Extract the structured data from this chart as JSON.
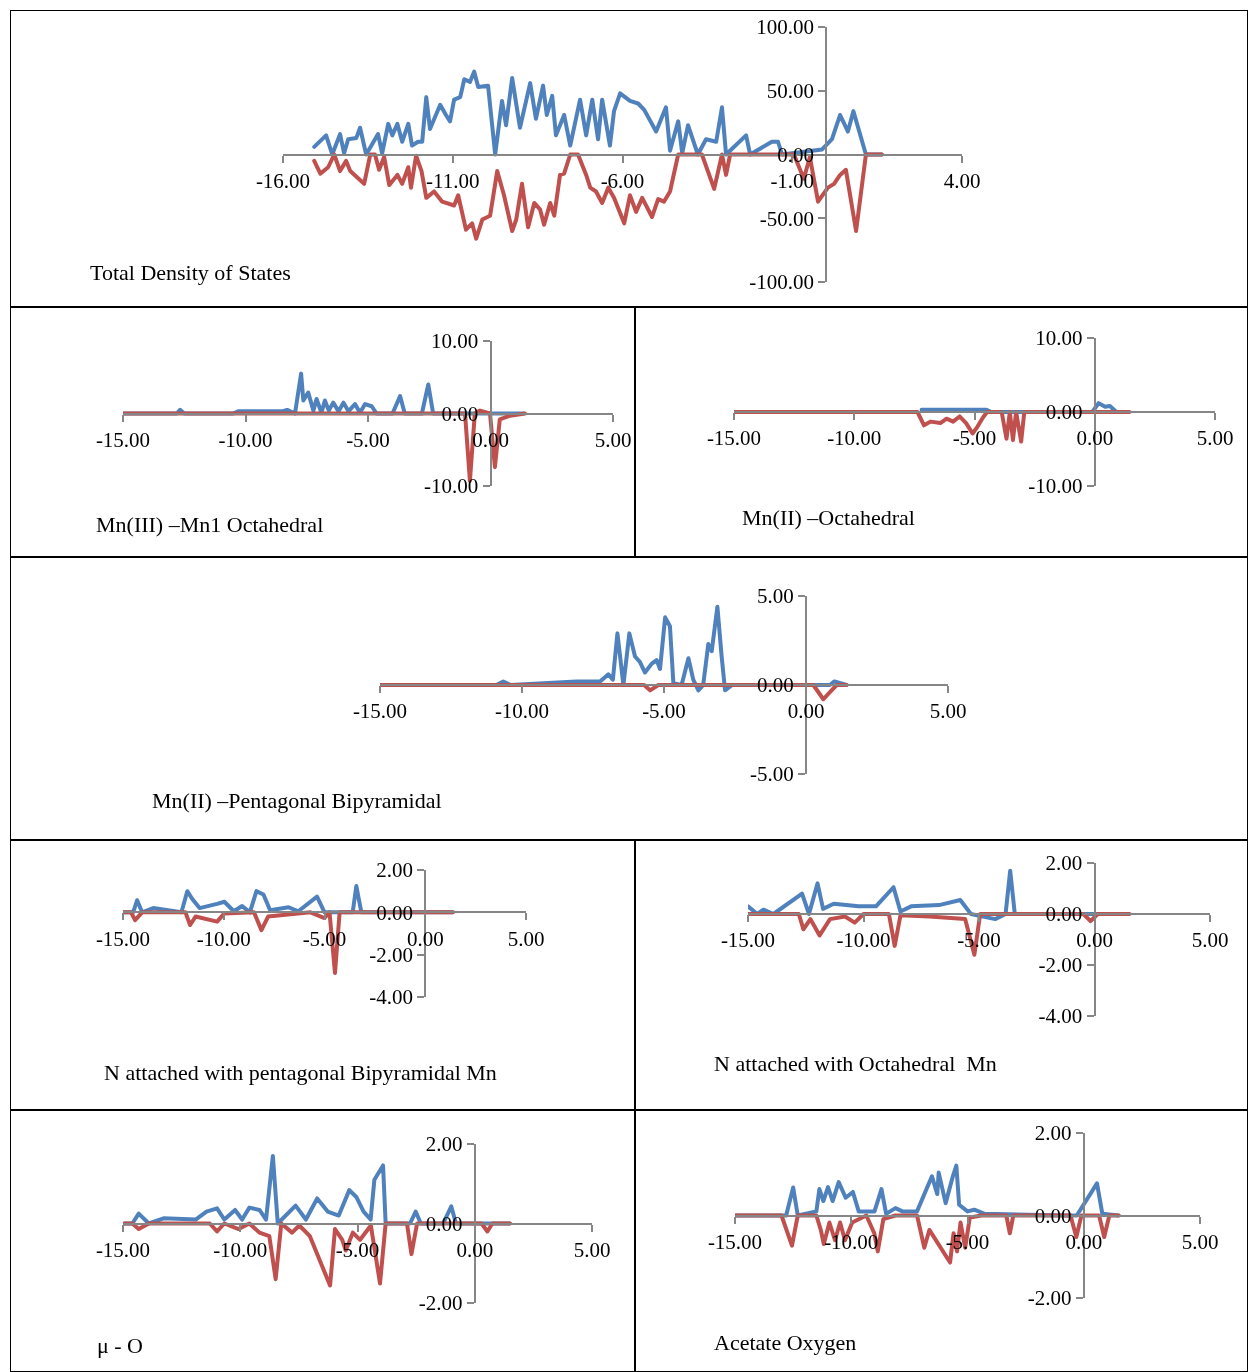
{
  "chart_data": [
    {
      "type": "line",
      "title": "Total Density of States",
      "xlim": [
        -16,
        4
      ],
      "xticks": [
        {
          "value": -16,
          "label": "-16.00"
        },
        {
          "value": -11,
          "label": "-11.00"
        },
        {
          "value": -6,
          "label": "-6.00"
        },
        {
          "value": -1,
          "label": "-1.00"
        },
        {
          "value": 4,
          "label": "4.00"
        }
      ],
      "ylim": [
        -100,
        100
      ],
      "yticks": [
        {
          "value": -100,
          "label": "-100.00"
        },
        {
          "value": -50,
          "label": "-50.00"
        },
        {
          "value": 0,
          "label": "0.00"
        },
        {
          "value": 50,
          "label": "50.00"
        },
        {
          "value": 100,
          "label": "100.00"
        }
      ],
      "series": [
        {
          "color": "#4f81bd",
          "x": [
            -15.08,
            -14.73,
            -14.55,
            -14.32,
            -14.2,
            -14.08,
            -13.84,
            -13.73,
            -13.55,
            -13.2,
            -13.08,
            -12.9,
            -12.78,
            -12.63,
            -12.49,
            -12.31,
            -12.2,
            -12.02,
            -11.9,
            -11.78,
            -11.67,
            -11.37,
            -11.2,
            -11.08,
            -10.96,
            -10.78,
            -10.66,
            -10.49,
            -10.37,
            -10.25,
            -9.96,
            -9.75,
            -9.55,
            -9.43,
            -9.25,
            -9.02,
            -8.72,
            -8.55,
            -8.34,
            -8.23,
            -8.07,
            -7.96,
            -7.72,
            -7.54,
            -7.25,
            -7.07,
            -6.89,
            -6.72,
            -6.6,
            -6.37,
            -6.25,
            -6.07,
            -5.78,
            -5.54,
            -5.36,
            -5.01,
            -4.72,
            -4.6,
            -4.36,
            -4.24,
            -4.07,
            -3.78,
            -3.54,
            -3.24,
            -3.07,
            -2.95,
            -2.36,
            -2.24,
            -1.6,
            -1.42,
            -1.3,
            -0.12,
            0.17,
            0.41,
            0.64,
            0.8,
            1.17,
            1.64
          ],
          "values": [
            6,
            15,
            0,
            16,
            1,
            12,
            13,
            21,
            0,
            16,
            1,
            24,
            15,
            24,
            10,
            24,
            7,
            10,
            10,
            45,
            20,
            39,
            31,
            26,
            43,
            45,
            59,
            57,
            65,
            53,
            54,
            0,
            42,
            23,
            60,
            21,
            56,
            28,
            54,
            31,
            46,
            15,
            31,
            7,
            43,
            15,
            43,
            12,
            43,
            7,
            34,
            48,
            42,
            40,
            35,
            18,
            37,
            3,
            26,
            1,
            23,
            0,
            12,
            10,
            37,
            0,
            15,
            0,
            10,
            10,
            0,
            4,
            12,
            31,
            18,
            34,
            0,
            0
          ]
        },
        {
          "color": "#c0504d",
          "x": [
            -15.08,
            -14.9,
            -14.67,
            -14.49,
            -14.32,
            -14.14,
            -14.02,
            -13.61,
            -13.43,
            -13.29,
            -13.17,
            -13.02,
            -12.87,
            -12.63,
            -12.49,
            -12.31,
            -12.23,
            -12.08,
            -11.92,
            -11.78,
            -11.55,
            -11.31,
            -10.96,
            -10.84,
            -10.61,
            -10.43,
            -10.31,
            -10.13,
            -9.9,
            -9.69,
            -9.49,
            -9.25,
            -9.13,
            -8.96,
            -8.78,
            -8.6,
            -8.43,
            -8.31,
            -8.13,
            -8.01,
            -7.84,
            -7.72,
            -7.54,
            -7.31,
            -7.07,
            -6.95,
            -6.78,
            -6.6,
            -6.42,
            -6.25,
            -5.95,
            -5.78,
            -5.6,
            -5.42,
            -5.13,
            -4.95,
            -4.78,
            -4.6,
            -4.36,
            -3.66,
            -3.3,
            -3.07,
            -2.95,
            -2.83,
            -0.95,
            -0.66,
            -0.48,
            -0.24,
            0.05,
            0.23,
            0.41,
            0.58,
            0.88,
            1.17,
            1.64
          ],
          "values": [
            -5,
            -15,
            -10,
            0,
            -13,
            -5,
            -13,
            -23,
            0,
            0,
            -12,
            -2,
            -24,
            -16,
            -23,
            -10,
            -26,
            -1,
            -13,
            -34,
            -29,
            -37,
            -40,
            -32,
            -59,
            -54,
            -66,
            -51,
            -48,
            -13,
            -32,
            -60,
            -51,
            -23,
            -57,
            -38,
            -43,
            -55,
            -38,
            -48,
            -16,
            -15,
            0,
            0,
            -16,
            -26,
            -29,
            -38,
            -26,
            -34,
            -54,
            -32,
            -45,
            -34,
            -49,
            -35,
            -37,
            -29,
            0,
            0,
            -27,
            0,
            -16,
            0,
            0,
            -19,
            -2,
            -37,
            -26,
            -23,
            -16,
            -12,
            -60,
            0,
            0
          ]
        }
      ]
    },
    {
      "type": "line",
      "title": "Mn(III) –Mn1 Octahedral",
      "xlim": [
        -15,
        5
      ],
      "xticks": [
        {
          "value": -15,
          "label": "-15.00"
        },
        {
          "value": -10,
          "label": "-10.00"
        },
        {
          "value": -5,
          "label": "-5.00"
        },
        {
          "value": 0,
          "label": "0.00"
        },
        {
          "value": 5,
          "label": "5.00"
        }
      ],
      "ylim": [
        -10,
        10
      ],
      "yticks": [
        {
          "value": -10,
          "label": "-10.00"
        },
        {
          "value": 0,
          "label": "0.00"
        },
        {
          "value": 10,
          "label": "10.00"
        }
      ],
      "series": [
        {
          "color": "#4f81bd",
          "x": [
            -15,
            -12.8,
            -12.67,
            -12.5,
            -10.5,
            -10.3,
            -8.5,
            -8.3,
            -7.98,
            -7.73,
            -7.64,
            -7.44,
            -7.23,
            -7.1,
            -6.9,
            -6.76,
            -6.6,
            -6.42,
            -6.2,
            -6.0,
            -5.8,
            -5.53,
            -5.33,
            -5.12,
            -4.85,
            -4.65,
            -4,
            -3.69,
            -3.5,
            -2.8,
            -2.54,
            -2.34,
            1.34
          ],
          "values": [
            0,
            0,
            0.5,
            0,
            0,
            0.3,
            0.3,
            0.5,
            0,
            5.5,
            1.8,
            2.9,
            0.4,
            2,
            0.1,
            1.8,
            0.4,
            1.5,
            0.3,
            1.5,
            0.3,
            1.3,
            0.1,
            1.3,
            1,
            0,
            0,
            2.4,
            0,
            0,
            4,
            0,
            0
          ]
        },
        {
          "color": "#c0504d",
          "x": [
            -15,
            -1.04,
            -0.84,
            -0.64,
            -0.43,
            -0.02,
            0.18,
            0.38,
            0.8,
            1.41
          ],
          "values": [
            0,
            0,
            -9.3,
            0,
            0.4,
            0,
            -7.4,
            -0.8,
            -0.3,
            0
          ]
        }
      ]
    },
    {
      "type": "line",
      "title": "Mn(II) –Octahedral",
      "xlim": [
        -15,
        5
      ],
      "xticks": [
        {
          "value": -15,
          "label": "-15.00"
        },
        {
          "value": -10,
          "label": "-10.00"
        },
        {
          "value": -5,
          "label": "-5.00"
        },
        {
          "value": 0,
          "label": "0.00"
        },
        {
          "value": 5,
          "label": "5.00"
        }
      ],
      "ylim": [
        -10,
        10
      ],
      "yticks": [
        {
          "value": -10,
          "label": "-10.00"
        },
        {
          "value": 0,
          "label": "0.00"
        },
        {
          "value": 10,
          "label": "10.00"
        }
      ],
      "series": [
        {
          "color": "#4f81bd",
          "x": [
            -7.2,
            -4.5,
            -4.3,
            -0.1,
            0.16,
            0.43,
            0.63,
            0.9
          ],
          "values": [
            0.3,
            0.3,
            0,
            0,
            1.2,
            0.7,
            0.8,
            0
          ]
        },
        {
          "color": "#c0504d",
          "x": [
            -15,
            -7.37,
            -7.1,
            -6.83,
            -6.42,
            -6.16,
            -5.89,
            -5.62,
            -5.35,
            -5.08,
            -4.88,
            -4.68,
            -4.48,
            -3.87,
            -3.67,
            -3.53,
            -3.4,
            -3.27,
            -3.06,
            -2.93,
            1.44
          ],
          "values": [
            0,
            0,
            -1.8,
            -1.3,
            -1.5,
            -0.9,
            -1.3,
            -0.6,
            -1.5,
            -2.9,
            -2,
            -0.9,
            0,
            0,
            -3.6,
            0,
            -3.8,
            0,
            -4,
            0,
            0
          ]
        }
      ]
    },
    {
      "type": "line",
      "title": "Mn(II) –Pentagonal Bipyramidal",
      "xlim": [
        -15,
        5
      ],
      "xticks": [
        {
          "value": -15,
          "label": "-15.00"
        },
        {
          "value": -10,
          "label": "-10.00"
        },
        {
          "value": -5,
          "label": "-5.00"
        },
        {
          "value": 0,
          "label": "0.00"
        },
        {
          "value": 5,
          "label": "5.00"
        }
      ],
      "ylim": [
        -5,
        5
      ],
      "yticks": [
        {
          "value": -5,
          "label": "-5.00"
        },
        {
          "value": 0,
          "label": "0.00"
        },
        {
          "value": 5,
          "label": "5.00"
        }
      ],
      "series": [
        {
          "color": "#4f81bd",
          "x": [
            -15,
            -10.9,
            -10.66,
            -10.4,
            -8.08,
            -7.25,
            -6.96,
            -6.8,
            -6.64,
            -6.43,
            -6.22,
            -6.02,
            -5.85,
            -5.67,
            -5.43,
            -5.26,
            -5.14,
            -4.96,
            -4.79,
            -4.67,
            -4.38,
            -4.14,
            -3.97,
            -3.79,
            -3.62,
            -3.44,
            -3.32,
            -3.12,
            -2.97,
            -2.85,
            -2.6,
            0.84,
            1.0,
            1.43
          ],
          "values": [
            0,
            0,
            0.2,
            0,
            0.2,
            0.2,
            0.6,
            0.3,
            2.9,
            0,
            2.9,
            1.6,
            1.3,
            0.7,
            1.2,
            1.4,
            0.9,
            3.8,
            3.3,
            0.1,
            0,
            1.5,
            0.3,
            -0.3,
            0,
            2.3,
            1.9,
            4.4,
            1.6,
            -0.3,
            0,
            0,
            0.2,
            0
          ]
        },
        {
          "color": "#c0504d",
          "x": [
            -15,
            -5.7,
            -5.49,
            -5.2,
            0.26,
            0.61,
            0.9,
            1.08,
            1.43
          ],
          "values": [
            0,
            0,
            -0.3,
            0,
            0,
            -0.8,
            -0.3,
            0,
            0
          ]
        }
      ]
    },
    {
      "type": "line",
      "title": "N attached with pentagonal Bipyramidal Mn",
      "xlim": [
        -15,
        5
      ],
      "xticks": [
        {
          "value": -15,
          "label": "-15.00"
        },
        {
          "value": -10,
          "label": "-10.00"
        },
        {
          "value": -5,
          "label": "-5.00"
        },
        {
          "value": 0,
          "label": "0.00"
        },
        {
          "value": 5,
          "label": "5.00"
        }
      ],
      "ylim": [
        -4,
        2
      ],
      "yticks": [
        {
          "value": -4,
          "label": "-4.00"
        },
        {
          "value": -2,
          "label": "-2.00"
        },
        {
          "value": 0,
          "label": "0.00"
        },
        {
          "value": 2,
          "label": "2.00"
        }
      ],
      "series": [
        {
          "color": "#4f81bd",
          "x": [
            -15,
            -14.5,
            -14.3,
            -14.05,
            -13.5,
            -12.1,
            -11.81,
            -11.57,
            -11.2,
            -10.33,
            -9.97,
            -9.5,
            -9.09,
            -8.7,
            -8.38,
            -8.03,
            -7.7,
            -6.78,
            -6.3,
            -5.37,
            -5.0,
            -3.6,
            -3.42,
            -3.17,
            1.37
          ],
          "values": [
            0,
            0,
            0.57,
            0,
            0.2,
            0,
            1.0,
            0.64,
            0.2,
            0.4,
            0.5,
            0.05,
            0.3,
            0,
            1.0,
            0.84,
            0.1,
            0.24,
            0.05,
            0.74,
            0,
            0,
            1.24,
            0,
            0
          ]
        },
        {
          "color": "#c0504d",
          "x": [
            -15,
            -14.6,
            -14.4,
            -14.05,
            -11.9,
            -11.67,
            -11.4,
            -10.33,
            -9.97,
            -8.5,
            -8.13,
            -7.8,
            -5.7,
            -5.0,
            -4.75,
            -4.48,
            -4.25,
            1.37
          ],
          "values": [
            0,
            0,
            -0.37,
            0,
            0,
            -0.6,
            -0.2,
            -0.44,
            -0.05,
            0,
            -0.84,
            -0.2,
            0,
            -0.27,
            0,
            -2.87,
            0,
            0
          ]
        }
      ]
    },
    {
      "type": "line",
      "title": "N attached with Octahedral  Mn",
      "xlim": [
        -15,
        5
      ],
      "xticks": [
        {
          "value": -15,
          "label": "-15.00"
        },
        {
          "value": -10,
          "label": "-10.00"
        },
        {
          "value": -5,
          "label": "-5.00"
        },
        {
          "value": 0,
          "label": "0.00"
        },
        {
          "value": 5,
          "label": "5.00"
        }
      ],
      "ylim": [
        -4,
        2
      ],
      "yticks": [
        {
          "value": -4,
          "label": "-4.00"
        },
        {
          "value": -2,
          "label": "-2.00"
        },
        {
          "value": 0,
          "label": "0.00"
        },
        {
          "value": 2,
          "label": "2.00"
        }
      ],
      "series": [
        {
          "color": "#4f81bd",
          "x": [
            -15,
            -14.6,
            -14.33,
            -13.9,
            -12.66,
            -12.36,
            -11.99,
            -11.75,
            -11.29,
            -10.22,
            -9.46,
            -8.7,
            -8.4,
            -7.94,
            -6.73,
            -5.81,
            -5.35,
            -4.3,
            -3.85,
            -3.65,
            -3.45,
            1.5
          ],
          "values": [
            0.3,
            0,
            0.17,
            0,
            0.8,
            0,
            1.2,
            0.2,
            0.4,
            0.3,
            0.3,
            1.05,
            0.1,
            0.3,
            0.35,
            0.55,
            0,
            -0.2,
            0,
            1.7,
            0,
            0
          ]
        },
        {
          "color": "#c0504d",
          "x": [
            -15,
            -12.8,
            -12.6,
            -12.3,
            -11.9,
            -11.45,
            -10.8,
            -10.38,
            -10.0,
            -8.9,
            -8.65,
            -8.4,
            -7.15,
            -5.6,
            -5.2,
            -4.95,
            -0.48,
            -0.17,
            0.14,
            1.5
          ],
          "values": [
            0,
            0,
            -0.6,
            -0.2,
            -0.84,
            -0.2,
            -0.1,
            -0.34,
            0,
            0,
            -1.25,
            -0.05,
            -0.1,
            -0.2,
            -1.6,
            0,
            0,
            -0.28,
            0,
            0
          ]
        }
      ]
    },
    {
      "type": "line",
      "title": "μ - O",
      "xlim": [
        -15,
        5
      ],
      "xticks": [
        {
          "value": -15,
          "label": "-15.00"
        },
        {
          "value": -10,
          "label": "-10.00"
        },
        {
          "value": -5,
          "label": "-5.00"
        },
        {
          "value": 0,
          "label": "0.00"
        },
        {
          "value": 5,
          "label": "5.00"
        }
      ],
      "ylim": [
        -2,
        2
      ],
      "yticks": [
        {
          "value": -2,
          "label": "-2.00"
        },
        {
          "value": 0,
          "label": "0.00"
        },
        {
          "value": 2,
          "label": "2.00"
        }
      ],
      "series": [
        {
          "color": "#4f81bd",
          "x": [
            -14.94,
            -14.6,
            -14.33,
            -13.9,
            -13.27,
            -11.9,
            -11.44,
            -10.99,
            -10.68,
            -10.22,
            -9.92,
            -9.61,
            -9.18,
            -8.9,
            -8.61,
            -8.4,
            -7.64,
            -7.2,
            -6.72,
            -6.27,
            -5.8,
            -5.35,
            -5.04,
            -4.74,
            -4.44,
            -4.28,
            -3.91,
            -3.8,
            -2.76,
            -2.52,
            -2.3,
            -1.35,
            -1.0,
            -0.8,
            1.5
          ],
          "values": [
            0,
            0,
            0.25,
            0,
            0.13,
            0.1,
            0.3,
            0.38,
            0.1,
            0.34,
            0.1,
            0.4,
            0.34,
            0.1,
            1.7,
            0,
            0.45,
            0.1,
            0.63,
            0.3,
            0.2,
            0.84,
            0.66,
            0.3,
            0.1,
            1.1,
            1.46,
            0,
            0,
            0.3,
            0,
            0,
            0.43,
            0,
            0
          ]
        },
        {
          "color": "#c0504d",
          "x": [
            -14.94,
            -14.6,
            -14.33,
            -13.9,
            -11.3,
            -10.99,
            -10.68,
            -10.07,
            -9.61,
            -9.18,
            -8.76,
            -8.49,
            -8.25,
            -7.79,
            -7.48,
            -7.03,
            -6.17,
            -5.96,
            -5.65,
            -5.5,
            -5.2,
            -4.89,
            -4.43,
            -4.04,
            -3.8,
            -2.89,
            -2.7,
            -2.46,
            0.29,
            0.54,
            0.75,
            1.5
          ],
          "values": [
            0,
            0,
            -0.14,
            0,
            0,
            -0.2,
            0,
            -0.14,
            0,
            -0.23,
            -0.32,
            -1.4,
            0,
            -0.23,
            -0.05,
            -0.32,
            -1.56,
            -0.14,
            -0.41,
            -0.68,
            -0.23,
            -0.41,
            -0.05,
            -1.51,
            0,
            0,
            -0.77,
            0,
            0,
            -0.2,
            0,
            0
          ]
        }
      ]
    },
    {
      "type": "line",
      "title": "Acetate Oxygen",
      "xlim": [
        -15,
        5
      ],
      "xticks": [
        {
          "value": -15,
          "label": "-15.00"
        },
        {
          "value": -10,
          "label": "-10.00"
        },
        {
          "value": -5,
          "label": "-5.00"
        },
        {
          "value": 0,
          "label": "0.00"
        },
        {
          "value": 5,
          "label": "5.00"
        }
      ],
      "ylim": [
        -2,
        2
      ],
      "yticks": [
        {
          "value": -2,
          "label": "-2.00"
        },
        {
          "value": 0,
          "label": "0.00"
        },
        {
          "value": 2,
          "label": "2.00"
        }
      ],
      "series": [
        {
          "color": "#4f81bd",
          "x": [
            -15,
            -12.8,
            -12.5,
            -12.3,
            -11.5,
            -11.37,
            -11.2,
            -11.0,
            -10.8,
            -10.54,
            -10.24,
            -9.93,
            -9.68,
            -9.0,
            -8.7,
            -8.5,
            -8.1,
            -7.8,
            -7.17,
            -6.53,
            -6.3,
            -6.24,
            -5.94,
            -5.63,
            -5.48,
            -5.36,
            -5.0,
            -4.71,
            -4.26,
            -0.72,
            -0.3,
            0.57,
            0.8,
            1.5
          ],
          "values": [
            0,
            0,
            0.68,
            0,
            0.1,
            0.64,
            0.35,
            0.69,
            0.35,
            0.81,
            0.43,
            0.57,
            0.1,
            0.1,
            0.64,
            0.04,
            0.18,
            0.1,
            0.1,
            0.95,
            0.52,
            1.04,
            0.3,
            0.95,
            1.21,
            0.26,
            0.1,
            0.14,
            0.04,
            0,
            0,
            0.78,
            0.04,
            0
          ]
        },
        {
          "color": "#c0504d",
          "x": [
            -15,
            -13.0,
            -12.55,
            -12.3,
            -11.5,
            -11.31,
            -11.18,
            -10.94,
            -10.7,
            -10.48,
            -10.27,
            -9.96,
            -9.35,
            -9.01,
            -8.86,
            -8.62,
            -8.1,
            -7.17,
            -6.86,
            -6.64,
            -5.75,
            -5.6,
            -5.45,
            -5.3,
            -5.1,
            -4.9,
            -4.4,
            -3.33,
            -3.18,
            -3.03,
            -0.57,
            -0.32,
            -0.1,
            0.66,
            0.88,
            1.1,
            1.5
          ],
          "values": [
            0,
            0,
            -0.73,
            0,
            0,
            -0.35,
            -0.69,
            -0.17,
            -0.6,
            -0.17,
            -0.6,
            -0.17,
            0,
            -0.43,
            -0.87,
            -0.09,
            0,
            0,
            -0.78,
            -0.35,
            -1.14,
            -0.43,
            -0.87,
            -0.17,
            -0.78,
            -0.05,
            0,
            0,
            -0.43,
            0,
            0,
            -0.52,
            0,
            0,
            -0.52,
            0,
            0
          ]
        }
      ]
    }
  ]
}
